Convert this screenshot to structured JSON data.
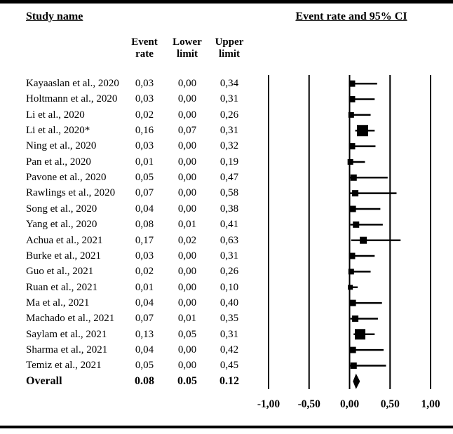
{
  "colors": {
    "ink": "#000000",
    "background": "#ffffff"
  },
  "headers": {
    "study_name": "Study name",
    "ci_title": "Event rate and 95% CI"
  },
  "columns": [
    {
      "line1": "Event",
      "line2": "rate"
    },
    {
      "line1": "Lower",
      "line2": "limit"
    },
    {
      "line1": "Upper",
      "line2": "limit"
    }
  ],
  "rows": [
    {
      "study": "Kayaaslan et al., 2020",
      "event_rate": "0,03",
      "lower": "0,00",
      "upper": "0,34",
      "bold": false
    },
    {
      "study": "Holtmann et al., 2020",
      "event_rate": "0,03",
      "lower": "0,00",
      "upper": "0,31",
      "bold": false
    },
    {
      "study": "Li et al., 2020",
      "event_rate": "0,02",
      "lower": "0,00",
      "upper": "0,26",
      "bold": false
    },
    {
      "study": "Li et al., 2020*",
      "event_rate": "0,16",
      "lower": "0,07",
      "upper": "0,31",
      "bold": false
    },
    {
      "study": "Ning et al., 2020",
      "event_rate": "0,03",
      "lower": "0,00",
      "upper": "0,32",
      "bold": false
    },
    {
      "study": "Pan et al., 2020",
      "event_rate": "0,01",
      "lower": "0,00",
      "upper": "0,19",
      "bold": false
    },
    {
      "study": "Pavone et al., 2020",
      "event_rate": "0,05",
      "lower": "0,00",
      "upper": "0,47",
      "bold": false
    },
    {
      "study": "Rawlings et al., 2020",
      "event_rate": "0,07",
      "lower": "0,00",
      "upper": "0,58",
      "bold": false
    },
    {
      "study": "Song et al., 2020",
      "event_rate": "0,04",
      "lower": "0,00",
      "upper": "0,38",
      "bold": false
    },
    {
      "study": "Yang et al., 2020",
      "event_rate": "0,08",
      "lower": "0,01",
      "upper": "0,41",
      "bold": false
    },
    {
      "study": "Achua et al., 2021",
      "event_rate": "0,17",
      "lower": "0,02",
      "upper": "0,63",
      "bold": false
    },
    {
      "study": "Burke et al., 2021",
      "event_rate": "0,03",
      "lower": "0,00",
      "upper": "0,31",
      "bold": false
    },
    {
      "study": "Guo et al., 2021",
      "event_rate": "0,02",
      "lower": "0,00",
      "upper": "0,26",
      "bold": false
    },
    {
      "study": "Ruan et al., 2021",
      "event_rate": "0,01",
      "lower": "0,00",
      "upper": "0,10",
      "bold": false
    },
    {
      "study": "Ma et al., 2021",
      "event_rate": "0,04",
      "lower": "0,00",
      "upper": "0,40",
      "bold": false
    },
    {
      "study": "Machado et al., 2021",
      "event_rate": "0,07",
      "lower": "0,01",
      "upper": "0,35",
      "bold": false
    },
    {
      "study": "Saylam et al., 2021",
      "event_rate": "0,13",
      "lower": "0,05",
      "upper": "0,31",
      "bold": false
    },
    {
      "study": "Sharma et al., 2021",
      "event_rate": "0,04",
      "lower": "0,00",
      "upper": "0,42",
      "bold": false
    },
    {
      "study": "Temiz et al., 2021",
      "event_rate": "0,05",
      "lower": "0,00",
      "upper": "0,45",
      "bold": false
    },
    {
      "study": "Overall",
      "event_rate": "0.08",
      "lower": "0.05",
      "upper": "0.12",
      "bold": true
    }
  ],
  "axis": {
    "tick_labels": [
      "-1,00",
      "-0,50",
      "0,00",
      "0,50",
      "1,00"
    ],
    "tick_values": [
      -1.0,
      -0.5,
      0.0,
      0.5,
      1.0
    ]
  },
  "chart_data": {
    "type": "forest",
    "title": "Event rate and 95% CI",
    "left_table_columns": [
      "Study name",
      "Event rate",
      "Lower limit",
      "Upper limit"
    ],
    "xlim": [
      -1.0,
      1.0
    ],
    "x_ticks": [
      -1.0,
      -0.5,
      0.0,
      0.5,
      1.0
    ],
    "x_tick_labels": [
      "-1,00",
      "-0,50",
      "0,00",
      "0,50",
      "1,00"
    ],
    "grid": true,
    "studies": [
      {
        "name": "Kayaaslan et al., 2020",
        "event_rate": 0.03,
        "lower": 0.0,
        "upper": 0.34,
        "marker_size": 9
      },
      {
        "name": "Holtmann et al., 2020",
        "event_rate": 0.03,
        "lower": 0.0,
        "upper": 0.31,
        "marker_size": 9
      },
      {
        "name": "Li et al., 2020",
        "event_rate": 0.02,
        "lower": 0.0,
        "upper": 0.26,
        "marker_size": 8
      },
      {
        "name": "Li et al., 2020*",
        "event_rate": 0.16,
        "lower": 0.07,
        "upper": 0.31,
        "marker_size": 16
      },
      {
        "name": "Ning et al., 2020",
        "event_rate": 0.03,
        "lower": 0.0,
        "upper": 0.32,
        "marker_size": 9
      },
      {
        "name": "Pan et al., 2020",
        "event_rate": 0.01,
        "lower": 0.0,
        "upper": 0.19,
        "marker_size": 8
      },
      {
        "name": "Pavone et al., 2020",
        "event_rate": 0.05,
        "lower": 0.0,
        "upper": 0.47,
        "marker_size": 9
      },
      {
        "name": "Rawlings et al., 2020",
        "event_rate": 0.07,
        "lower": 0.0,
        "upper": 0.58,
        "marker_size": 9
      },
      {
        "name": "Song et al., 2020",
        "event_rate": 0.04,
        "lower": 0.0,
        "upper": 0.38,
        "marker_size": 9
      },
      {
        "name": "Yang et al., 2020",
        "event_rate": 0.08,
        "lower": 0.01,
        "upper": 0.41,
        "marker_size": 9
      },
      {
        "name": "Achua et al., 2021",
        "event_rate": 0.17,
        "lower": 0.02,
        "upper": 0.63,
        "marker_size": 10
      },
      {
        "name": "Burke et al., 2021",
        "event_rate": 0.03,
        "lower": 0.0,
        "upper": 0.31,
        "marker_size": 9
      },
      {
        "name": "Guo et al., 2021",
        "event_rate": 0.02,
        "lower": 0.0,
        "upper": 0.26,
        "marker_size": 8
      },
      {
        "name": "Ruan et al., 2021",
        "event_rate": 0.01,
        "lower": 0.0,
        "upper": 0.1,
        "marker_size": 7
      },
      {
        "name": "Ma et al., 2021",
        "event_rate": 0.04,
        "lower": 0.0,
        "upper": 0.4,
        "marker_size": 9
      },
      {
        "name": "Machado et al., 2021",
        "event_rate": 0.07,
        "lower": 0.01,
        "upper": 0.35,
        "marker_size": 9
      },
      {
        "name": "Saylam et al., 2021",
        "event_rate": 0.13,
        "lower": 0.05,
        "upper": 0.31,
        "marker_size": 15
      },
      {
        "name": "Sharma et al., 2021",
        "event_rate": 0.04,
        "lower": 0.0,
        "upper": 0.42,
        "marker_size": 9
      },
      {
        "name": "Temiz et al., 2021",
        "event_rate": 0.05,
        "lower": 0.0,
        "upper": 0.45,
        "marker_size": 9
      }
    ],
    "overall": {
      "name": "Overall",
      "event_rate": 0.08,
      "lower": 0.05,
      "upper": 0.12
    }
  }
}
